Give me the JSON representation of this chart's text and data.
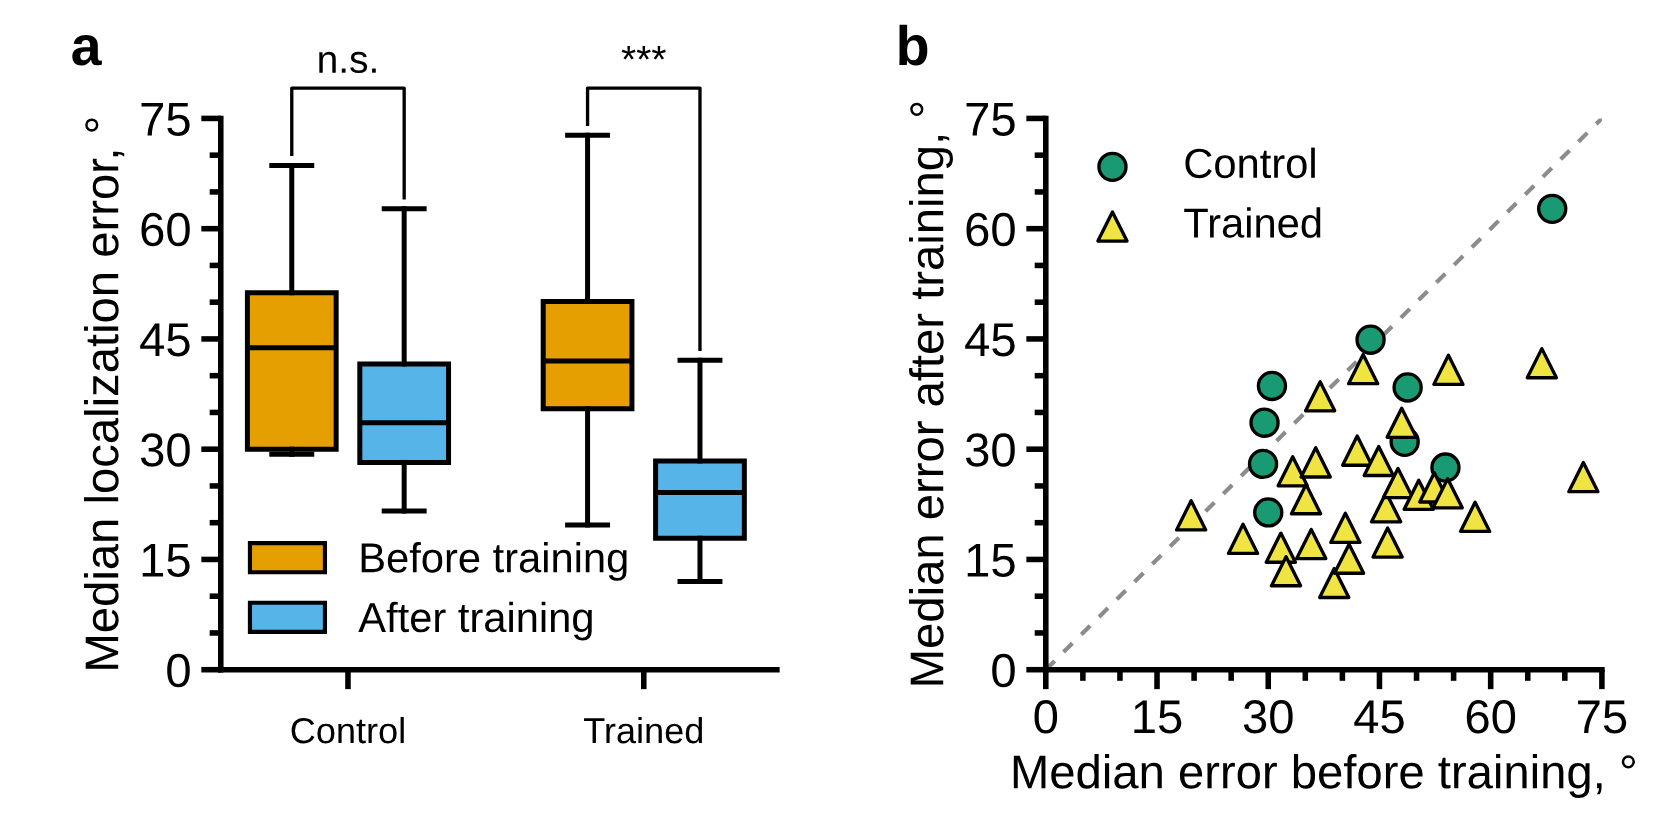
{
  "chart_data": [
    {
      "type": "box",
      "title": "a",
      "ylabel": "Median localization error, °",
      "categories": [
        "Control",
        "Trained"
      ],
      "series": [
        {
          "name": "Before training",
          "color": "#e69f00",
          "boxes": [
            {
              "low": 29.3,
              "q1": 30.0,
              "median": 43.8,
              "q3": 51.3,
              "high": 68.6
            },
            {
              "low": 19.7,
              "q1": 35.5,
              "median": 42.0,
              "q3": 50.1,
              "high": 72.7
            }
          ]
        },
        {
          "name": "After training",
          "color": "#56b4e9",
          "boxes": [
            {
              "low": 21.6,
              "q1": 28.2,
              "median": 33.6,
              "q3": 41.6,
              "high": 62.7
            },
            {
              "low": 12.0,
              "q1": 17.9,
              "median": 24.1,
              "q3": 28.4,
              "high": 42.1
            }
          ]
        }
      ],
      "annotations": [
        "n.s.",
        "***"
      ],
      "ylim": [
        0,
        75
      ],
      "yticks": [
        0,
        15,
        30,
        45,
        60,
        75
      ],
      "legend": "bottom left"
    },
    {
      "type": "scatter",
      "title": "b",
      "xlabel": "Median error before training, °",
      "ylabel": "Median error after training, °",
      "series": [
        {
          "name": "Control",
          "color": "#1a9a73",
          "marker": "circle",
          "x": [
            43.8,
            30.5,
            48.8,
            29.5,
            48.4,
            29.3,
            53.9,
            30.0,
            68.3
          ],
          "values": [
            44.9,
            38.6,
            38.4,
            33.6,
            31.0,
            28.0,
            27.5,
            21.4,
            62.7
          ]
        },
        {
          "name": "Trained",
          "color": "#f0e442",
          "marker": "triangle",
          "x": [
            19.6,
            26.6,
            31.7,
            32.4,
            33.3,
            35.1,
            35.8,
            36.4,
            37.0,
            38.9,
            40.4,
            40.9,
            42.0,
            42.8,
            44.9,
            45.9,
            46.1,
            47.5,
            48.0,
            50.3,
            52.4,
            54.2,
            54.3,
            57.9,
            66.9,
            72.5
          ],
          "values": [
            21.0,
            17.8,
            16.6,
            13.4,
            27.0,
            23.2,
            17.1,
            28.2,
            37.2,
            11.8,
            19.3,
            15.1,
            29.8,
            40.9,
            28.4,
            22.1,
            17.3,
            25.4,
            33.6,
            23.8,
            24.8,
            24.0,
            40.8,
            20.8,
            41.7,
            26.2
          ]
        },
        {
          "type": "line",
          "color": "#8c8c8c",
          "line_style": "dashed",
          "x": [
            0,
            75
          ],
          "values": [
            0,
            75
          ]
        }
      ],
      "xlim": [
        0,
        75
      ],
      "xticks": [
        0,
        15,
        30,
        45,
        60,
        75
      ],
      "ylim": [
        0,
        75
      ],
      "yticks": [
        0,
        15,
        30,
        45,
        60,
        75
      ],
      "legend": "top left"
    }
  ]
}
